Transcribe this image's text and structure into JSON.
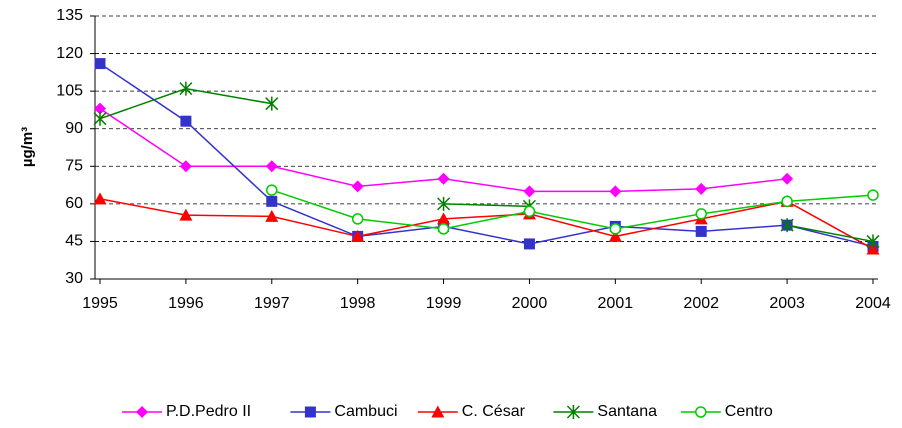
{
  "chart_data": {
    "type": "line",
    "y_label": "µg/m³",
    "x": [
      1995,
      1996,
      1997,
      1998,
      1999,
      2000,
      2001,
      2002,
      2003,
      2004
    ],
    "xlim": [
      1995,
      2004
    ],
    "xticks": [
      1995,
      1996,
      1997,
      1998,
      1999,
      2000,
      2001,
      2002,
      2003,
      2004
    ],
    "ylim": [
      30,
      135
    ],
    "yticks": [
      30,
      45,
      60,
      75,
      90,
      105,
      120,
      135
    ],
    "grid": true,
    "legend": "bottom",
    "series": [
      {
        "name": "P.D.Pedro II",
        "color": "#ff00ff",
        "marker": "diamond",
        "values": [
          98,
          75,
          75,
          67,
          70,
          65,
          65,
          66,
          70,
          null
        ]
      },
      {
        "name": "Cambuci",
        "color": "#3333cc",
        "marker": "square",
        "values": [
          116,
          93,
          61,
          47,
          51,
          44,
          51,
          49,
          51.5,
          43
        ]
      },
      {
        "name": "C. César",
        "color": "#ff0000",
        "marker": "triangle",
        "values": [
          62,
          55.5,
          55,
          47,
          54,
          56,
          47,
          54,
          61,
          42
        ]
      },
      {
        "name": "Santana",
        "color": "#008000",
        "marker": "star",
        "values": [
          94,
          106,
          100,
          null,
          60,
          59,
          null,
          null,
          51.5,
          45
        ]
      },
      {
        "name": "Centro",
        "color": "#00cc00",
        "marker": "circle",
        "values": [
          null,
          null,
          65.5,
          54,
          50,
          57,
          50,
          56,
          61,
          63.5
        ]
      }
    ]
  }
}
